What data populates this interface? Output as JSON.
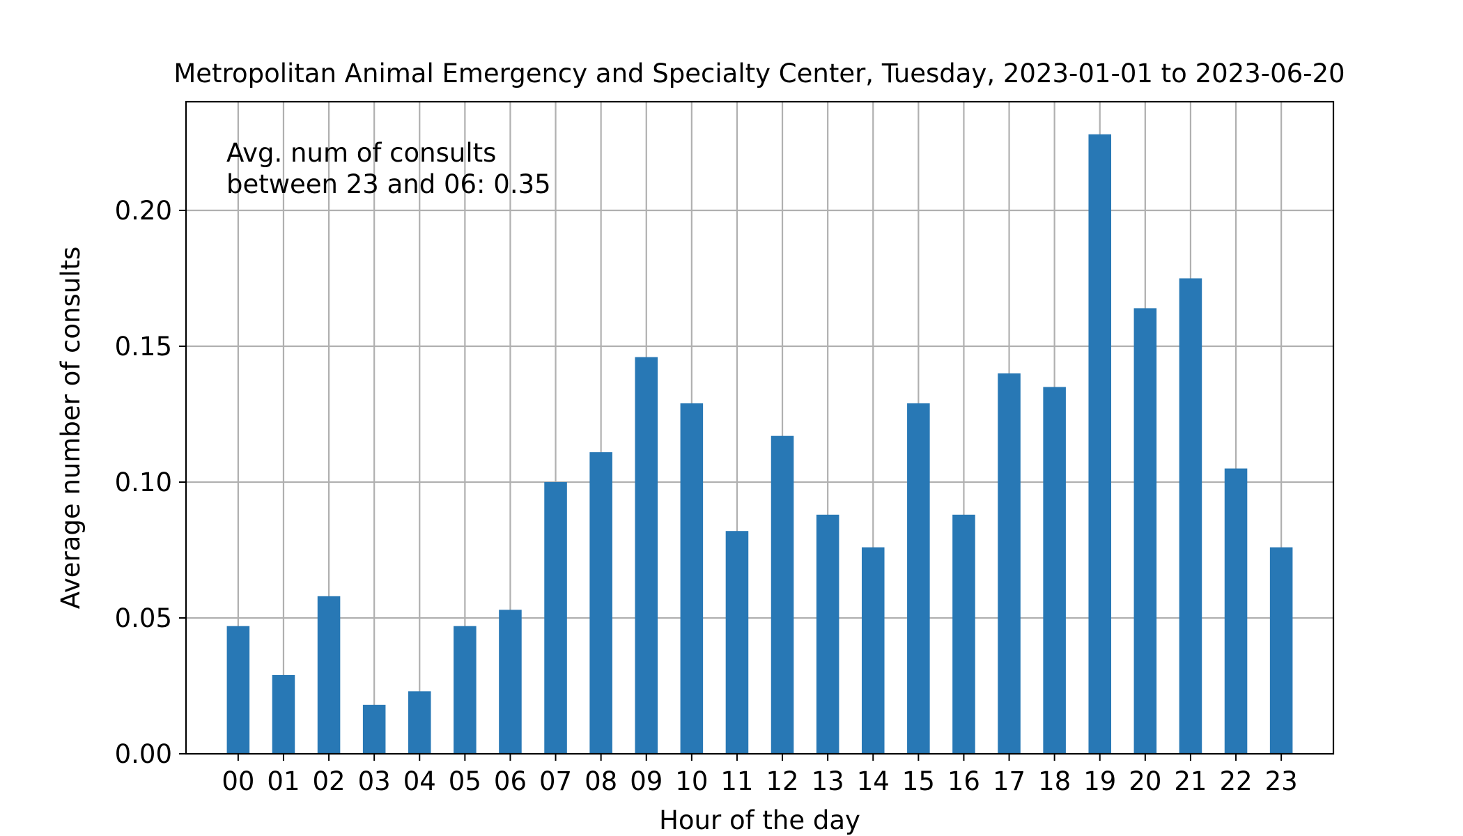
{
  "chart_data": {
    "type": "bar",
    "title": "Metropolitan Animal Emergency and Specialty Center, Tuesday, 2023-01-01 to 2023-06-20",
    "xlabel": "Hour of the day",
    "ylabel": "Average number of consults",
    "categories": [
      "00",
      "01",
      "02",
      "03",
      "04",
      "05",
      "06",
      "07",
      "08",
      "09",
      "10",
      "11",
      "12",
      "13",
      "14",
      "15",
      "16",
      "17",
      "18",
      "19",
      "20",
      "21",
      "22",
      "23"
    ],
    "values": [
      0.047,
      0.029,
      0.058,
      0.018,
      0.023,
      0.047,
      0.053,
      0.1,
      0.111,
      0.146,
      0.129,
      0.082,
      0.117,
      0.088,
      0.076,
      0.129,
      0.088,
      0.14,
      0.135,
      0.228,
      0.164,
      0.175,
      0.105,
      0.076
    ],
    "ylim": [
      0,
      0.24
    ],
    "yticks": [
      0.0,
      0.05,
      0.1,
      0.15,
      0.2
    ],
    "ytick_labels": [
      "0.00",
      "0.05",
      "0.10",
      "0.15",
      "0.20"
    ],
    "grid": true,
    "bar_color": "#2878b5",
    "annotation": {
      "line1": "Avg. num of consults",
      "line2": "between 23 and 06: 0.35"
    }
  }
}
